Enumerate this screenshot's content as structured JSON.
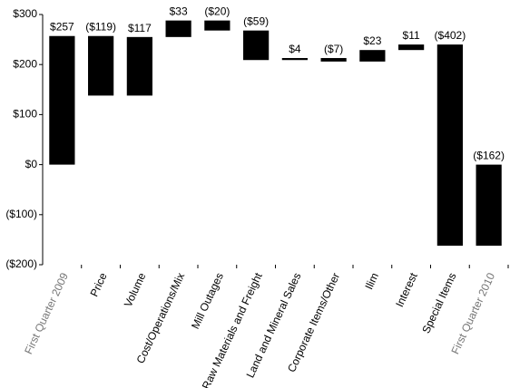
{
  "chart_data": {
    "type": "waterfall",
    "categories": [
      "First Quarter 2009",
      "Price",
      "Volume",
      "Cost/Operations/Mix",
      "Mill Outages",
      "Raw Materials and Freight",
      "Land and Mineral Sales",
      "Corporate Items/Other",
      "Ilim",
      "Interest",
      "Special Items",
      "First Quarter 2010"
    ],
    "values": [
      257,
      -119,
      117,
      33,
      -20,
      -59,
      4,
      -7,
      23,
      11,
      -402,
      -162
    ],
    "value_labels": [
      "$257",
      "($119)",
      "$117",
      "$33",
      "($20)",
      "($59)",
      "$4",
      "($7)",
      "$23",
      "$11",
      "($402)",
      "($162)"
    ],
    "color": "#000000",
    "total_label_color": "#777777",
    "ylim": [
      -200,
      300
    ],
    "yticks": [
      {
        "value": -200,
        "label": "($200)"
      },
      {
        "value": -100,
        "label": "($100)"
      },
      {
        "value": 0,
        "label": "$0"
      },
      {
        "value": 100,
        "label": "$100"
      },
      {
        "value": 200,
        "label": "$200"
      },
      {
        "value": 300,
        "label": "$300"
      }
    ]
  }
}
